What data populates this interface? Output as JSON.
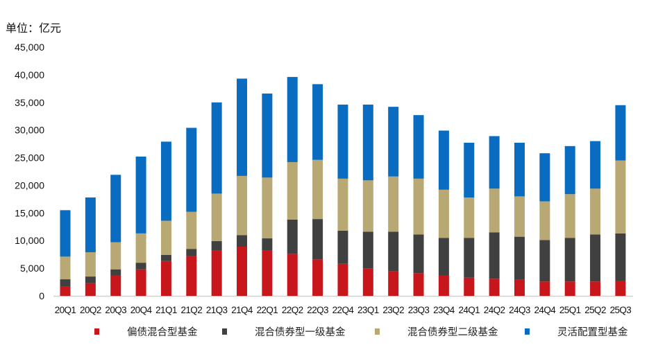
{
  "chart_data": {
    "type": "bar",
    "stacked": true,
    "unit_label": "单位：亿元",
    "ylim": [
      0,
      45000
    ],
    "yticks": [
      "0",
      "5,000",
      "10,000",
      "15,000",
      "20,000",
      "25,000",
      "30,000",
      "35,000",
      "40,000",
      "45,000"
    ],
    "ytick_values": [
      0,
      5000,
      10000,
      15000,
      20000,
      25000,
      30000,
      35000,
      40000,
      45000
    ],
    "grid": false,
    "legend_position": "bottom",
    "categories": [
      "20Q1",
      "20Q2",
      "20Q3",
      "20Q4",
      "21Q1",
      "21Q2",
      "21Q3",
      "21Q4",
      "22Q1",
      "22Q2",
      "22Q3",
      "22Q4",
      "23Q1",
      "23Q2",
      "23Q3",
      "23Q4",
      "24Q1",
      "24Q2",
      "24Q3",
      "24Q4",
      "25Q1",
      "25Q2",
      "25Q3"
    ],
    "series": [
      {
        "name": "偏债混合型基金",
        "color": "#c8161d",
        "values": [
          1700,
          2300,
          3700,
          4800,
          6300,
          7200,
          8200,
          8900,
          8200,
          7600,
          6600,
          5800,
          5000,
          4500,
          4100,
          3700,
          3300,
          3100,
          2900,
          2600,
          2600,
          2600,
          2700
        ]
      },
      {
        "name": "混合债券型一级基金",
        "color": "#404040",
        "values": [
          1300,
          1200,
          1100,
          1200,
          1100,
          1300,
          1700,
          2100,
          2200,
          6200,
          7300,
          6000,
          6600,
          7100,
          7000,
          6800,
          7200,
          8400,
          7800,
          7500,
          7900,
          8500,
          8600
        ]
      },
      {
        "name": "混合债券型二级基金",
        "color": "#b8a874",
        "values": [
          4100,
          4400,
          4900,
          5300,
          6200,
          6700,
          8600,
          10700,
          11000,
          10400,
          10700,
          9400,
          9300,
          10000,
          10100,
          8700,
          7300,
          7900,
          7300,
          7000,
          7900,
          8300,
          13200
        ]
      },
      {
        "name": "灵活配置型基金",
        "color": "#0a6cc0",
        "values": [
          8400,
          9900,
          12200,
          13900,
          14300,
          15200,
          16500,
          17600,
          15200,
          15400,
          13700,
          13400,
          13700,
          12600,
          11500,
          10700,
          9900,
          9500,
          9700,
          8700,
          8700,
          8600,
          10000
        ]
      }
    ]
  }
}
